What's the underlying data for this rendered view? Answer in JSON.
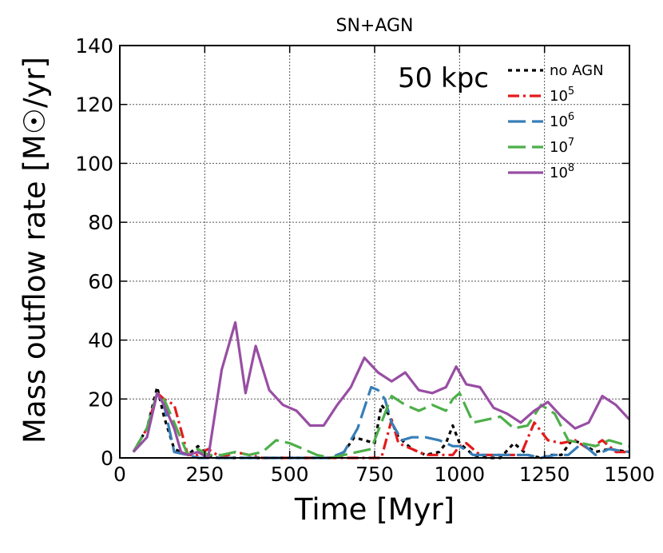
{
  "chart_data": {
    "type": "line",
    "title": "SN+AGN",
    "annotation": "50 kpc",
    "xlabel": "Time [Myr]",
    "ylabel": "Mass outflow rate [M☉/yr]",
    "xlim": [
      0,
      1500
    ],
    "ylim": [
      0,
      140
    ],
    "xticks": [
      "0",
      "250",
      "500",
      "750",
      "1000",
      "1250",
      "1500"
    ],
    "yticks": [
      "0",
      "20",
      "40",
      "60",
      "80",
      "100",
      "120",
      "140"
    ],
    "grid": true,
    "legend_position": "top-right",
    "series": [
      {
        "name": "no AGN",
        "sup": "",
        "color": "#000000",
        "dash": "5 5",
        "x": [
          40,
          80,
          110,
          130,
          160,
          180,
          200,
          230,
          260,
          290,
          320,
          350,
          380,
          420,
          460,
          500,
          540,
          580,
          620,
          660,
          690,
          720,
          750,
          770,
          790,
          820,
          860,
          900,
          940,
          960,
          980,
          1000,
          1040,
          1080,
          1120,
          1160,
          1200,
          1240,
          1270,
          1300,
          1330,
          1360,
          1400,
          1440,
          1500
        ],
        "y": [
          2,
          10,
          24,
          14,
          3,
          2,
          1,
          4,
          1,
          0,
          0,
          0,
          0,
          0,
          0,
          0,
          0,
          0,
          0,
          2,
          7,
          6,
          5,
          18,
          15,
          7,
          3,
          1,
          2,
          5,
          11,
          5,
          1,
          0,
          0,
          5,
          1,
          0,
          1,
          1,
          6,
          5,
          2,
          3,
          2
        ]
      },
      {
        "name": "10",
        "sup": "5",
        "color": "#e41a1c",
        "dash": "14 5 3 5",
        "x": [
          40,
          80,
          110,
          130,
          160,
          200,
          230,
          260,
          300,
          340,
          380,
          420,
          460,
          500,
          540,
          580,
          620,
          660,
          700,
          740,
          770,
          800,
          820,
          860,
          900,
          940,
          980,
          1000,
          1020,
          1060,
          1100,
          1140,
          1180,
          1220,
          1260,
          1300,
          1340,
          1380,
          1420,
          1460,
          1500
        ],
        "y": [
          2,
          10,
          22,
          20,
          18,
          1,
          1,
          3,
          0,
          2,
          1,
          0,
          0,
          0,
          0,
          0,
          0,
          0,
          0,
          0,
          0,
          13,
          5,
          3,
          1,
          1,
          1,
          4,
          5,
          1,
          1,
          1,
          1,
          12,
          6,
          5,
          6,
          3,
          6,
          2,
          2
        ]
      },
      {
        "name": "10",
        "sup": "6",
        "color": "#377eb8",
        "dash": "22 8",
        "x": [
          40,
          80,
          110,
          130,
          160,
          200,
          230,
          260,
          300,
          340,
          380,
          420,
          460,
          500,
          540,
          580,
          620,
          660,
          700,
          740,
          760,
          780,
          800,
          830,
          860,
          900,
          940,
          980,
          1000,
          1040,
          1080,
          1120,
          1160,
          1200,
          1240,
          1280,
          1320,
          1360,
          1400,
          1440,
          1500
        ],
        "y": [
          2,
          10,
          22,
          18,
          2,
          1,
          0,
          0,
          0,
          0,
          0,
          0,
          0,
          0,
          0,
          0,
          0,
          2,
          10,
          24,
          23,
          20,
          12,
          6,
          7,
          7,
          6,
          4,
          4,
          1,
          1,
          1,
          1,
          1,
          0,
          1,
          1,
          5,
          1,
          3,
          2
        ]
      },
      {
        "name": "10",
        "sup": "7",
        "color": "#4daf4a",
        "dash": "22 8",
        "x": [
          40,
          80,
          110,
          130,
          160,
          200,
          230,
          260,
          300,
          340,
          380,
          420,
          460,
          500,
          540,
          580,
          620,
          660,
          700,
          740,
          770,
          800,
          840,
          880,
          920,
          960,
          980,
          1000,
          1040,
          1080,
          1120,
          1160,
          1200,
          1240,
          1280,
          1320,
          1360,
          1400,
          1440,
          1500
        ],
        "y": [
          2,
          10,
          22,
          20,
          12,
          1,
          3,
          1,
          1,
          2,
          1,
          2,
          6,
          5,
          3,
          1,
          0,
          1,
          2,
          3,
          12,
          21,
          18,
          16,
          18,
          16,
          20,
          22,
          12,
          13,
          14,
          10,
          11,
          18,
          15,
          6,
          5,
          4,
          6,
          4
        ]
      },
      {
        "name": "10",
        "sup": "8",
        "color": "#984ea3",
        "dash": "",
        "x": [
          40,
          80,
          110,
          130,
          160,
          180,
          200,
          230,
          260,
          300,
          340,
          370,
          400,
          440,
          480,
          520,
          560,
          600,
          640,
          680,
          720,
          760,
          800,
          840,
          880,
          920,
          960,
          990,
          1020,
          1060,
          1100,
          1140,
          1180,
          1220,
          1260,
          1300,
          1340,
          1380,
          1420,
          1460,
          1500
        ],
        "y": [
          2,
          7,
          22,
          18,
          10,
          2,
          1,
          2,
          0,
          30,
          46,
          22,
          38,
          23,
          18,
          16,
          11,
          11,
          18,
          24,
          34,
          29,
          26,
          29,
          23,
          22,
          24,
          31,
          25,
          24,
          17,
          15,
          12,
          16,
          19,
          14,
          10,
          12,
          21,
          18,
          13
        ]
      }
    ]
  }
}
